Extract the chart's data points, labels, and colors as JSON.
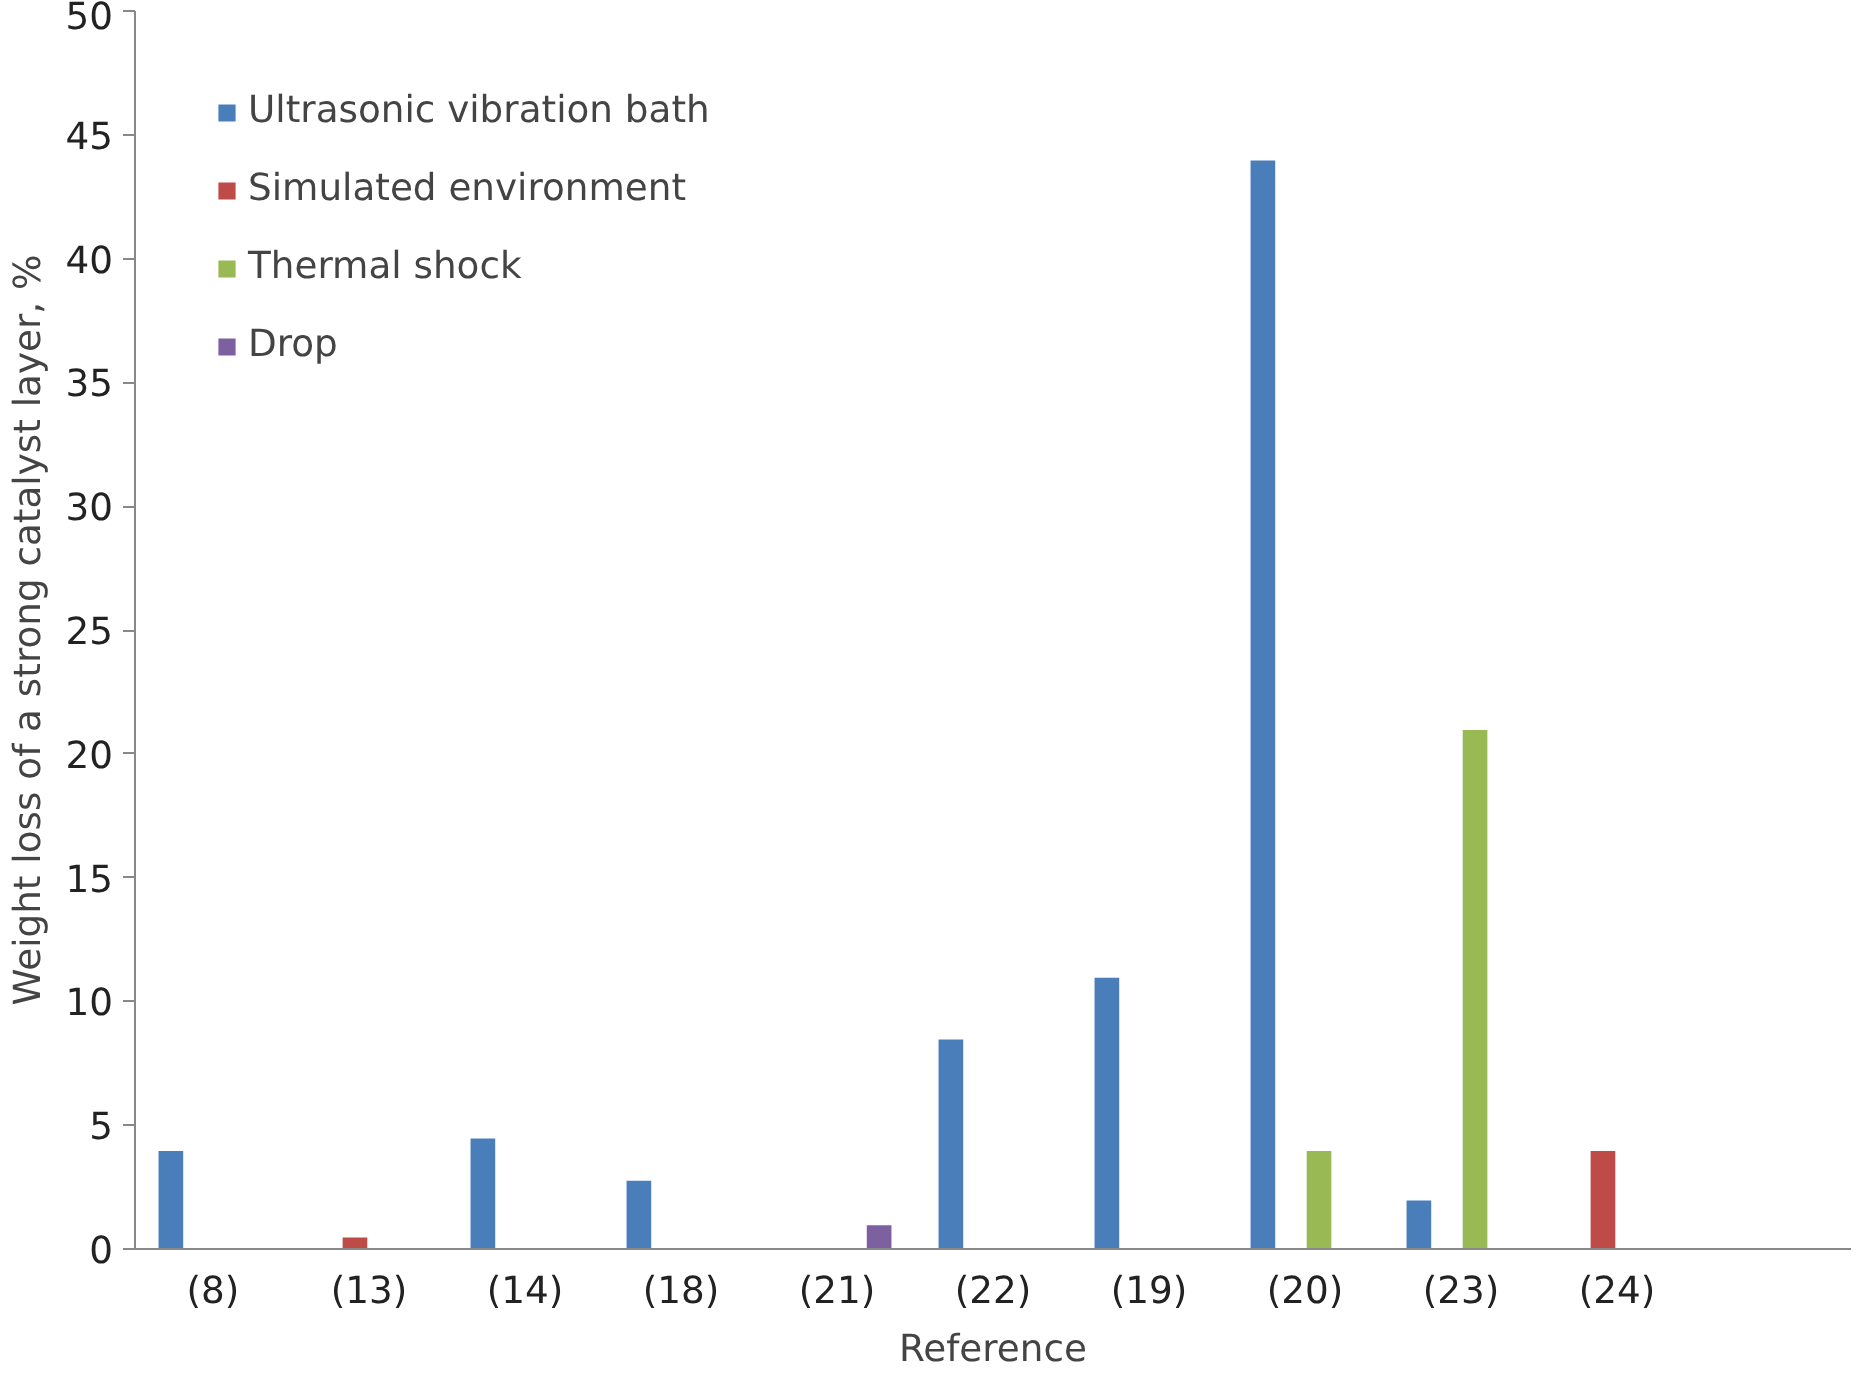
{
  "chart_data": {
    "type": "bar",
    "xlabel": "Reference",
    "ylabel": "Weight loss of a strong catalyst layer, %",
    "categories": [
      "(8)",
      "(13)",
      "(14)",
      "(18)",
      "(21)",
      "(22)",
      "(19)",
      "(20)",
      "(23)",
      "(24)",
      null
    ],
    "series": [
      {
        "name": "Ultrasonic vibration bath",
        "color": "#4a7ebb",
        "values": [
          4,
          null,
          4.5,
          2.8,
          null,
          8.5,
          11,
          44,
          2,
          null,
          null
        ]
      },
      {
        "name": "Simulated environment",
        "color": "#be4b48",
        "values": [
          null,
          0.5,
          null,
          null,
          null,
          null,
          null,
          null,
          null,
          4,
          null
        ]
      },
      {
        "name": "Thermal shock",
        "color": "#98b954",
        "values": [
          null,
          null,
          null,
          null,
          null,
          null,
          null,
          4,
          21,
          null,
          null
        ]
      },
      {
        "name": "Drop",
        "color": "#7d60a0",
        "values": [
          null,
          null,
          null,
          null,
          1,
          null,
          null,
          null,
          null,
          null,
          null
        ]
      }
    ],
    "ylim": [
      0,
      50
    ],
    "yticks": [
      0,
      5,
      10,
      15,
      20,
      25,
      30,
      35,
      40,
      45,
      50
    ],
    "grid": false,
    "legend": "top left"
  }
}
